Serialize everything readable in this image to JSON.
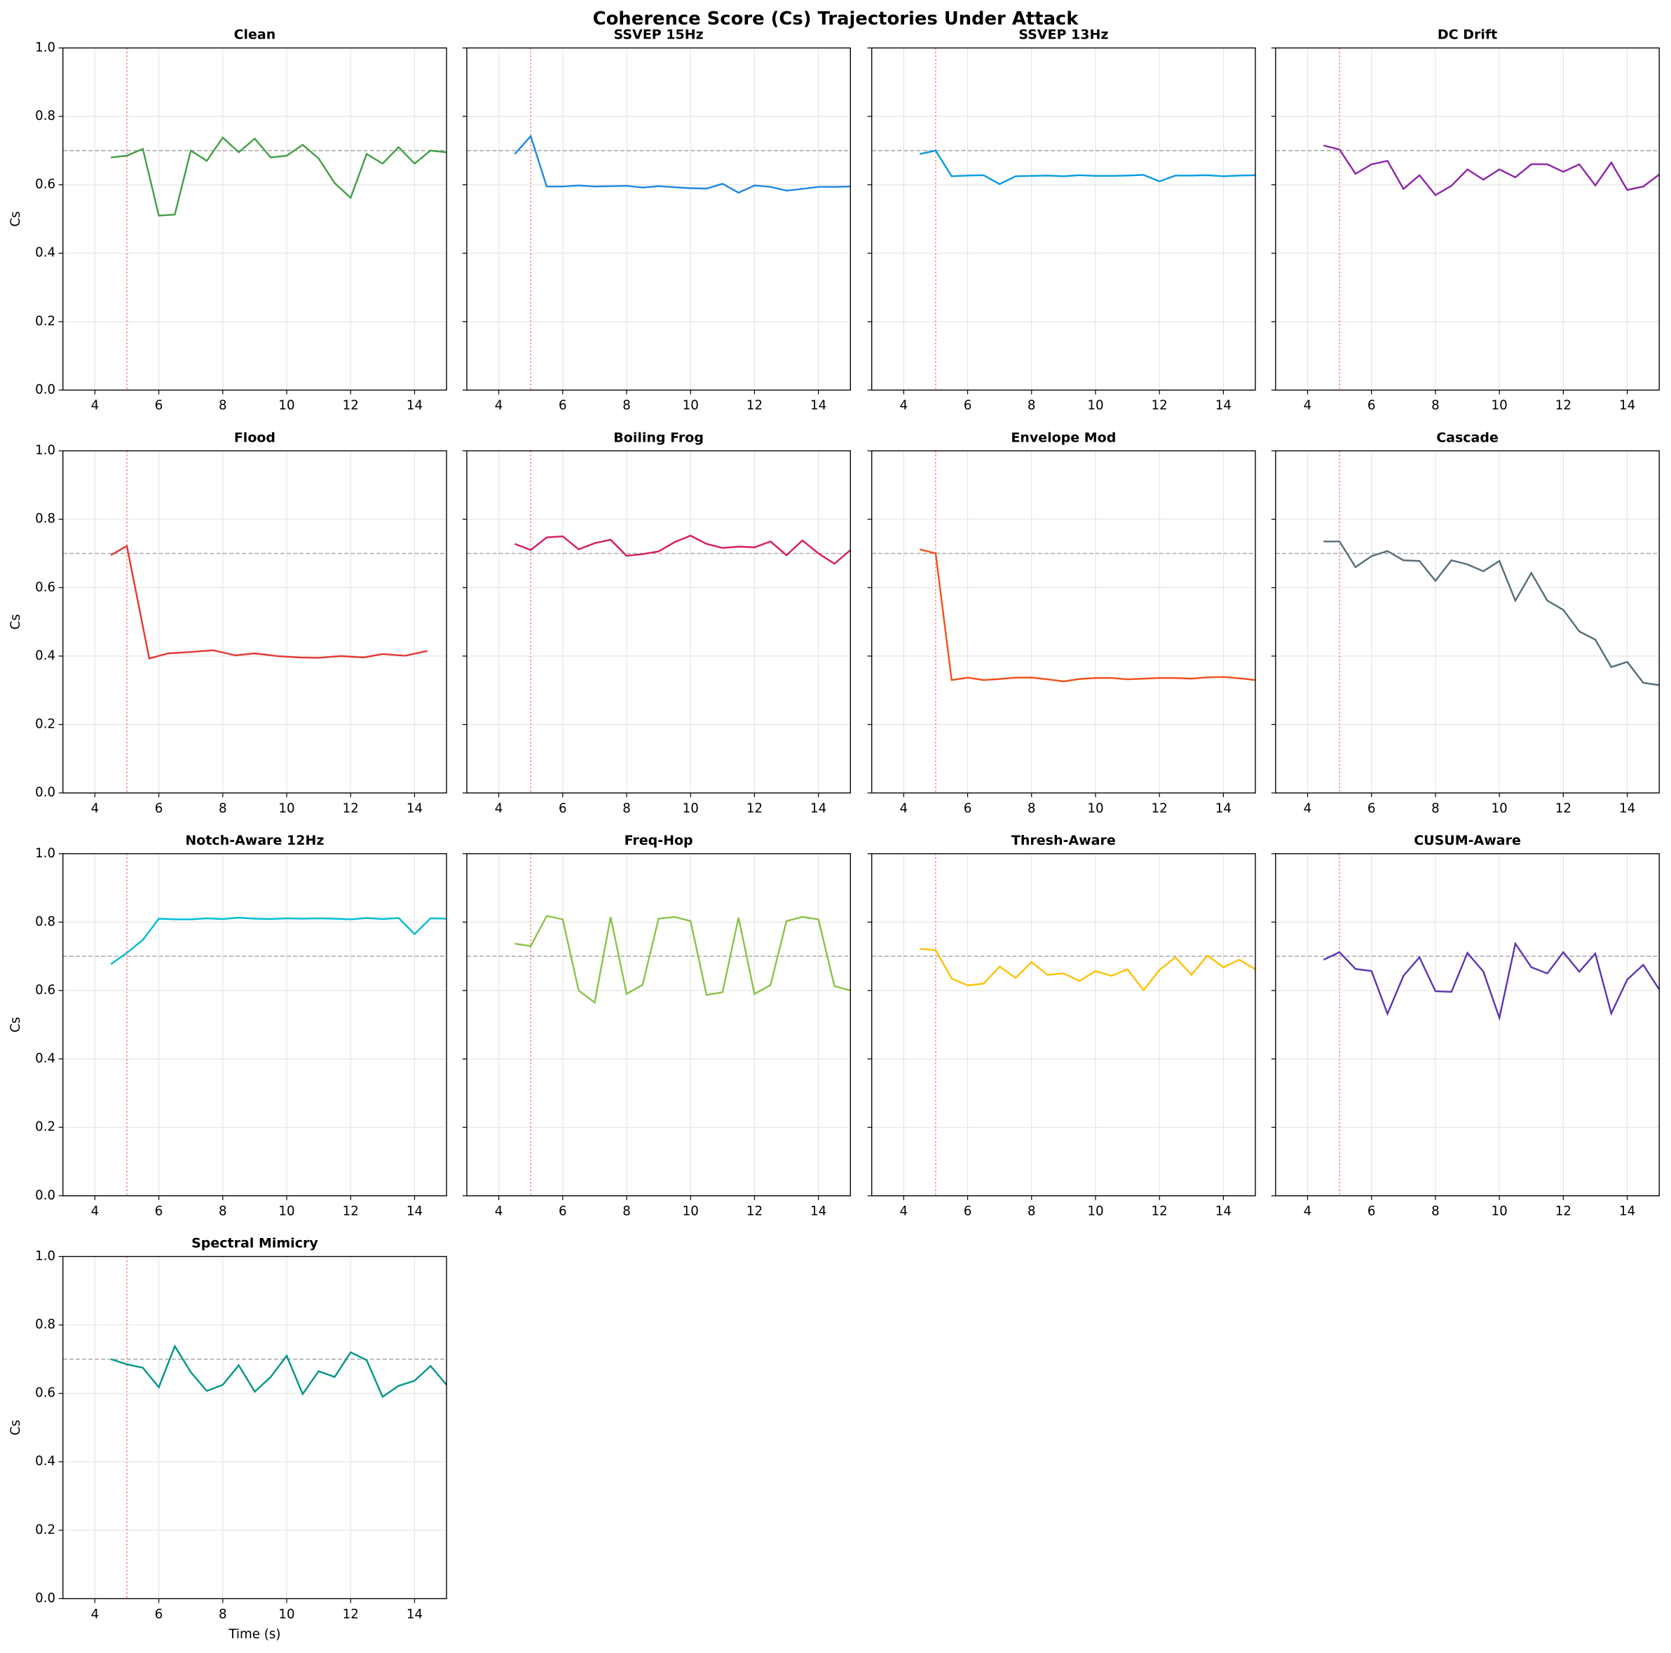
{
  "title": "Coherence Score (Cs) Trajectories Under Attack",
  "chart_data": [
    {
      "type": "line",
      "title": "Clean",
      "ylabel": "Cs",
      "color": "#43a047",
      "x": [
        4.5,
        5,
        5.5,
        6,
        6.5,
        7,
        7.5,
        8,
        8.5,
        9,
        9.5,
        10,
        10.5,
        11,
        11.5,
        12,
        12.5,
        13,
        13.5,
        14,
        14.5,
        15
      ],
      "values": [
        0.68,
        0.685,
        0.705,
        0.51,
        0.513,
        0.7,
        0.67,
        0.738,
        0.695,
        0.735,
        0.68,
        0.685,
        0.717,
        0.677,
        0.605,
        0.562,
        0.69,
        0.662,
        0.71,
        0.662,
        0.7,
        0.695
      ],
      "xlim": [
        3,
        15
      ],
      "ylim": [
        0,
        1
      ],
      "xticks": [
        4,
        6,
        8,
        10,
        12,
        14
      ],
      "yticks": [
        {
          "value": 0,
          "label": "0.0"
        },
        0.2,
        0.4,
        0.6,
        0.8,
        {
          "value": 1,
          "label": "1.0"
        }
      ],
      "threshold": 0.7,
      "attack_onset": 5,
      "grid": true
    },
    {
      "type": "line",
      "title": "SSVEP 15Hz",
      "color": "#1e88e5",
      "x": [
        4.5,
        5,
        5.5,
        6,
        6.5,
        7,
        7.5,
        8,
        8.5,
        9,
        9.5,
        10,
        10.5,
        11,
        11.5,
        12,
        12.5,
        13,
        13.5,
        14,
        14.5,
        15
      ],
      "values": [
        0.69,
        0.742,
        0.595,
        0.595,
        0.598,
        0.595,
        0.596,
        0.597,
        0.592,
        0.596,
        0.593,
        0.59,
        0.589,
        0.603,
        0.577,
        0.598,
        0.594,
        0.583,
        0.588,
        0.594,
        0.594,
        0.595
      ],
      "xlim": [
        3,
        15
      ],
      "ylim": [
        0,
        1
      ],
      "xticks": [
        4,
        6,
        8,
        10,
        12,
        14
      ],
      "yticks": [
        {
          "value": 0,
          "label": "0.0"
        },
        0.2,
        0.4,
        0.6,
        0.8,
        {
          "value": 1,
          "label": "1.0"
        }
      ],
      "threshold": 0.7,
      "attack_onset": 5,
      "grid": true
    },
    {
      "type": "line",
      "title": "SSVEP 13Hz",
      "color": "#039be5",
      "x": [
        4.5,
        5,
        5.5,
        6,
        6.5,
        7,
        7.5,
        8,
        8.5,
        9,
        9.5,
        10,
        10.5,
        11,
        11.5,
        12,
        12.5,
        13,
        13.5,
        14,
        14.5,
        15
      ],
      "values": [
        0.69,
        0.7,
        0.625,
        0.627,
        0.628,
        0.602,
        0.625,
        0.626,
        0.627,
        0.625,
        0.628,
        0.626,
        0.626,
        0.627,
        0.629,
        0.61,
        0.627,
        0.627,
        0.628,
        0.625,
        0.627,
        0.628
      ],
      "xlim": [
        3,
        15
      ],
      "ylim": [
        0,
        1
      ],
      "xticks": [
        4,
        6,
        8,
        10,
        12,
        14
      ],
      "yticks": [
        {
          "value": 0,
          "label": "0.0"
        },
        0.2,
        0.4,
        0.6,
        0.8,
        {
          "value": 1,
          "label": "1.0"
        }
      ],
      "threshold": 0.7,
      "attack_onset": 5,
      "grid": true
    },
    {
      "type": "line",
      "title": "DC Drift",
      "color": "#8e24aa",
      "x": [
        4.5,
        5,
        5.5,
        6,
        6.5,
        7,
        7.5,
        8,
        8.5,
        9,
        9.5,
        10,
        10.5,
        11,
        11.5,
        12,
        12.5,
        13,
        13.5,
        14,
        14.5,
        15
      ],
      "values": [
        0.715,
        0.703,
        0.632,
        0.66,
        0.67,
        0.588,
        0.628,
        0.57,
        0.597,
        0.645,
        0.615,
        0.645,
        0.622,
        0.66,
        0.66,
        0.638,
        0.66,
        0.598,
        0.665,
        0.585,
        0.595,
        0.63
      ],
      "xlim": [
        3,
        15
      ],
      "ylim": [
        0,
        1
      ],
      "xticks": [
        4,
        6,
        8,
        10,
        12,
        14
      ],
      "yticks": [
        {
          "value": 0,
          "label": "0.0"
        },
        0.2,
        0.4,
        0.6,
        0.8,
        {
          "value": 1,
          "label": "1.0"
        }
      ],
      "threshold": 0.7,
      "attack_onset": 5,
      "grid": true
    },
    {
      "type": "line",
      "title": "Flood",
      "ylabel": "Cs",
      "color": "#e53935",
      "x": [
        4.5,
        5.0,
        5.7,
        6.3,
        7.0,
        7.7,
        8.4,
        9.0,
        9.7,
        10.4,
        11.0,
        11.7,
        12.4,
        13.0,
        13.7,
        14.4
      ],
      "values": [
        0.695,
        0.722,
        0.393,
        0.408,
        0.412,
        0.417,
        0.402,
        0.408,
        0.4,
        0.396,
        0.395,
        0.4,
        0.396,
        0.406,
        0.401,
        0.415
      ],
      "xlim": [
        3,
        15
      ],
      "ylim": [
        0,
        1
      ],
      "xticks": [
        4,
        6,
        8,
        10,
        12,
        14
      ],
      "yticks": [
        {
          "value": 0,
          "label": "0.0"
        },
        0.2,
        0.4,
        0.6,
        0.8,
        {
          "value": 1,
          "label": "1.0"
        }
      ],
      "threshold": 0.7,
      "attack_onset": 5,
      "grid": true
    },
    {
      "type": "line",
      "title": "Boiling Frog",
      "color": "#d81b60",
      "x": [
        4.5,
        5,
        5.5,
        6,
        6.5,
        7,
        7.5,
        8,
        8.5,
        9,
        9.5,
        10,
        10.5,
        11,
        11.5,
        12,
        12.5,
        13,
        13.5,
        14,
        14.5,
        15
      ],
      "values": [
        0.728,
        0.71,
        0.747,
        0.75,
        0.712,
        0.73,
        0.74,
        0.693,
        0.698,
        0.706,
        0.733,
        0.752,
        0.728,
        0.716,
        0.72,
        0.718,
        0.735,
        0.695,
        0.738,
        0.7,
        0.67,
        0.71
      ],
      "xlim": [
        3,
        15
      ],
      "ylim": [
        0,
        1
      ],
      "xticks": [
        4,
        6,
        8,
        10,
        12,
        14
      ],
      "yticks": [
        {
          "value": 0,
          "label": "0.0"
        },
        0.2,
        0.4,
        0.6,
        0.8,
        {
          "value": 1,
          "label": "1.0"
        }
      ],
      "threshold": 0.7,
      "attack_onset": 5,
      "grid": true
    },
    {
      "type": "line",
      "title": "Envelope Mod",
      "color": "#f4511e",
      "x": [
        4.5,
        5,
        5.5,
        6,
        6.5,
        7,
        7.5,
        8,
        8.5,
        9,
        9.5,
        10,
        10.5,
        11,
        11.5,
        12,
        12.5,
        13,
        13.5,
        14,
        14.5,
        15
      ],
      "values": [
        0.712,
        0.7,
        0.33,
        0.337,
        0.33,
        0.333,
        0.337,
        0.337,
        0.332,
        0.326,
        0.333,
        0.336,
        0.336,
        0.332,
        0.334,
        0.336,
        0.336,
        0.334,
        0.338,
        0.339,
        0.335,
        0.33
      ],
      "xlim": [
        3,
        15
      ],
      "ylim": [
        0,
        1
      ],
      "xticks": [
        4,
        6,
        8,
        10,
        12,
        14
      ],
      "yticks": [
        {
          "value": 0,
          "label": "0.0"
        },
        0.2,
        0.4,
        0.6,
        0.8,
        {
          "value": 1,
          "label": "1.0"
        }
      ],
      "threshold": 0.7,
      "attack_onset": 5,
      "grid": true
    },
    {
      "type": "line",
      "title": "Cascade",
      "color": "#546e7a",
      "x": [
        4.5,
        5,
        5.5,
        6,
        6.5,
        7,
        7.5,
        8,
        8.5,
        9,
        9.5,
        10,
        10.5,
        11,
        11.5,
        12,
        12.5,
        13,
        13.5,
        14,
        14.5,
        15
      ],
      "values": [
        0.735,
        0.735,
        0.66,
        0.692,
        0.707,
        0.68,
        0.678,
        0.62,
        0.68,
        0.668,
        0.648,
        0.678,
        0.562,
        0.643,
        0.562,
        0.535,
        0.472,
        0.448,
        0.368,
        0.383,
        0.322,
        0.315
      ],
      "xlim": [
        3,
        15
      ],
      "ylim": [
        0,
        1
      ],
      "xticks": [
        4,
        6,
        8,
        10,
        12,
        14
      ],
      "yticks": [
        {
          "value": 0,
          "label": "0.0"
        },
        0.2,
        0.4,
        0.6,
        0.8,
        {
          "value": 1,
          "label": "1.0"
        }
      ],
      "threshold": 0.7,
      "attack_onset": 5,
      "grid": true
    },
    {
      "type": "line",
      "title": "Notch-Aware 12Hz",
      "ylabel": "Cs",
      "color": "#00bcd4",
      "x": [
        4.5,
        5,
        5.5,
        6,
        6.5,
        7,
        7.5,
        8,
        8.5,
        9,
        9.5,
        10,
        10.5,
        11,
        11.5,
        12,
        12.5,
        13,
        13.5,
        14,
        14.5,
        15
      ],
      "values": [
        0.677,
        0.71,
        0.748,
        0.81,
        0.808,
        0.808,
        0.811,
        0.809,
        0.813,
        0.81,
        0.809,
        0.811,
        0.81,
        0.811,
        0.81,
        0.808,
        0.812,
        0.809,
        0.812,
        0.765,
        0.811,
        0.81
      ],
      "xlim": [
        3,
        15
      ],
      "ylim": [
        0,
        1
      ],
      "xticks": [
        4,
        6,
        8,
        10,
        12,
        14
      ],
      "yticks": [
        {
          "value": 0,
          "label": "0.0"
        },
        0.2,
        0.4,
        0.6,
        0.8,
        {
          "value": 1,
          "label": "1.0"
        }
      ],
      "threshold": 0.7,
      "attack_onset": 5,
      "grid": true
    },
    {
      "type": "line",
      "title": "Freq-Hop",
      "color": "#8bc34a",
      "x": [
        4.5,
        5,
        5.5,
        6,
        6.5,
        7,
        7.5,
        8,
        8.5,
        9,
        9.5,
        10,
        10.5,
        11,
        11.5,
        12,
        12.5,
        13,
        13.5,
        14,
        14.5,
        15
      ],
      "values": [
        0.737,
        0.73,
        0.818,
        0.808,
        0.6,
        0.565,
        0.815,
        0.59,
        0.617,
        0.81,
        0.815,
        0.803,
        0.587,
        0.595,
        0.813,
        0.59,
        0.616,
        0.803,
        0.815,
        0.808,
        0.613,
        0.6
      ],
      "xlim": [
        3,
        15
      ],
      "ylim": [
        0,
        1
      ],
      "xticks": [
        4,
        6,
        8,
        10,
        12,
        14
      ],
      "yticks": [
        {
          "value": 0,
          "label": "0.0"
        },
        0.2,
        0.4,
        0.6,
        0.8,
        {
          "value": 1,
          "label": "1.0"
        }
      ],
      "threshold": 0.7,
      "attack_onset": 5,
      "grid": true
    },
    {
      "type": "line",
      "title": "Thresh-Aware",
      "color": "#ffc107",
      "x": [
        4.5,
        5,
        5.5,
        6,
        6.5,
        7,
        7.5,
        8,
        8.5,
        9,
        9.5,
        10,
        10.5,
        11,
        11.5,
        12,
        12.5,
        13,
        13.5,
        14,
        14.5,
        15
      ],
      "values": [
        0.722,
        0.718,
        0.635,
        0.615,
        0.62,
        0.67,
        0.637,
        0.683,
        0.646,
        0.65,
        0.628,
        0.657,
        0.643,
        0.662,
        0.601,
        0.66,
        0.697,
        0.646,
        0.702,
        0.668,
        0.69,
        0.662
      ],
      "xlim": [
        3,
        15
      ],
      "ylim": [
        0,
        1
      ],
      "xticks": [
        4,
        6,
        8,
        10,
        12,
        14
      ],
      "yticks": [
        {
          "value": 0,
          "label": "0.0"
        },
        0.2,
        0.4,
        0.6,
        0.8,
        {
          "value": 1,
          "label": "1.0"
        }
      ],
      "threshold": 0.7,
      "attack_onset": 5,
      "grid": true
    },
    {
      "type": "line",
      "title": "CUSUM-Aware",
      "color": "#5e35b1",
      "x": [
        4.5,
        5,
        5.5,
        6,
        6.5,
        7,
        7.5,
        8,
        8.5,
        9,
        9.5,
        10,
        10.5,
        11,
        11.5,
        12,
        12.5,
        13,
        13.5,
        14,
        14.5,
        15
      ],
      "values": [
        0.69,
        0.712,
        0.663,
        0.657,
        0.532,
        0.643,
        0.697,
        0.598,
        0.596,
        0.71,
        0.655,
        0.52,
        0.737,
        0.668,
        0.65,
        0.712,
        0.655,
        0.708,
        0.533,
        0.632,
        0.675,
        0.603
      ],
      "xlim": [
        3,
        15
      ],
      "ylim": [
        0,
        1
      ],
      "xticks": [
        4,
        6,
        8,
        10,
        12,
        14
      ],
      "yticks": [
        {
          "value": 0,
          "label": "0.0"
        },
        0.2,
        0.4,
        0.6,
        0.8,
        {
          "value": 1,
          "label": "1.0"
        }
      ],
      "threshold": 0.7,
      "attack_onset": 5,
      "grid": true
    },
    {
      "type": "line",
      "title": "Spectral Mimicry",
      "ylabel": "Cs",
      "xlabel": "Time (s)",
      "color": "#009688",
      "x": [
        4.5,
        5,
        5.5,
        6,
        6.5,
        7,
        7.5,
        8,
        8.5,
        9,
        9.5,
        10,
        10.5,
        11,
        11.5,
        12,
        12.5,
        13,
        13.5,
        14,
        14.5,
        15
      ],
      "values": [
        0.7,
        0.685,
        0.675,
        0.618,
        0.738,
        0.662,
        0.607,
        0.625,
        0.682,
        0.605,
        0.648,
        0.71,
        0.598,
        0.665,
        0.648,
        0.72,
        0.697,
        0.59,
        0.622,
        0.637,
        0.68,
        0.625
      ],
      "xlim": [
        3,
        15
      ],
      "ylim": [
        0,
        1
      ],
      "xticks": [
        4,
        6,
        8,
        10,
        12,
        14
      ],
      "yticks": [
        {
          "value": 0,
          "label": "0.0"
        },
        0.2,
        0.4,
        0.6,
        0.8,
        {
          "value": 1,
          "label": "1.0"
        }
      ],
      "threshold": 0.7,
      "attack_onset": 5,
      "grid": true
    }
  ]
}
